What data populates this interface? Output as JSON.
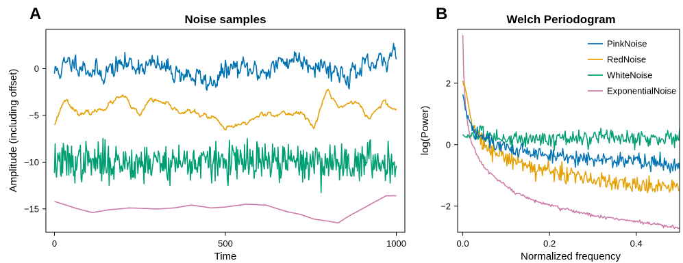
{
  "colors": {
    "pink": "#0072b2",
    "red": "#e69f00",
    "white": "#009e73",
    "exponential": "#cc79a7"
  },
  "chart_data": [
    {
      "panel": "A",
      "type": "line",
      "title": "Noise samples",
      "xlabel": "Time",
      "ylabel": "Amplitude (including offset)",
      "xlim": [
        -25,
        1025
      ],
      "ylim": [
        -17.5,
        4.2
      ],
      "xticks": [
        0,
        500,
        1000
      ],
      "xtick_labels": [
        "0",
        "500",
        "1000"
      ],
      "yticks": [
        0,
        -5,
        -10,
        -15
      ],
      "ytick_labels": [
        "0",
        "−5",
        "−10",
        "−15"
      ],
      "grid": false,
      "series": [
        {
          "color_key": "pink",
          "offset": 0,
          "kind": "pink",
          "scale": 0.9,
          "seed": 11,
          "anchors": [
            [
              0,
              -0.4
            ],
            [
              60,
              0.8
            ],
            [
              130,
              -0.6
            ],
            [
              200,
              0.5
            ],
            [
              300,
              0.3
            ],
            [
              420,
              -1.0
            ],
            [
              450,
              -1.6
            ],
            [
              520,
              0.1
            ],
            [
              600,
              -0.4
            ],
            [
              650,
              0.3
            ],
            [
              700,
              1.2
            ],
            [
              780,
              0.4
            ],
            [
              850,
              -0.6
            ],
            [
              930,
              0.2
            ],
            [
              970,
              0.6
            ],
            [
              1000,
              2.6
            ]
          ]
        },
        {
          "color_key": "red",
          "offset": -5,
          "kind": "red",
          "scale": 0.35,
          "seed": 23,
          "anchors": [
            [
              0,
              -5.9
            ],
            [
              30,
              -3.2
            ],
            [
              80,
              -5.0
            ],
            [
              120,
              -4.6
            ],
            [
              200,
              -3.0
            ],
            [
              250,
              -5.2
            ],
            [
              280,
              -3.2
            ],
            [
              350,
              -4.4
            ],
            [
              420,
              -4.8
            ],
            [
              470,
              -5.4
            ],
            [
              500,
              -6.6
            ],
            [
              560,
              -5.8
            ],
            [
              620,
              -4.6
            ],
            [
              680,
              -5.0
            ],
            [
              720,
              -4.5
            ],
            [
              760,
              -6.4
            ],
            [
              780,
              -4.0
            ],
            [
              800,
              -2.3
            ],
            [
              830,
              -4.2
            ],
            [
              880,
              -3.4
            ],
            [
              920,
              -5.4
            ],
            [
              960,
              -3.6
            ],
            [
              1000,
              -4.4
            ]
          ]
        },
        {
          "color_key": "white",
          "offset": -10,
          "kind": "white",
          "scale": 1.0,
          "seed": 37,
          "anchors": [
            [
              0,
              -10
            ],
            [
              1000,
              -10
            ]
          ]
        },
        {
          "color_key": "exponential",
          "offset": -15,
          "kind": "smooth",
          "scale": 0.06,
          "seed": 51,
          "anchors": [
            [
              0,
              -14.2
            ],
            [
              60,
              -14.9
            ],
            [
              110,
              -15.4
            ],
            [
              160,
              -15.1
            ],
            [
              220,
              -14.9
            ],
            [
              300,
              -15.0
            ],
            [
              350,
              -14.9
            ],
            [
              400,
              -14.6
            ],
            [
              460,
              -14.9
            ],
            [
              500,
              -14.8
            ],
            [
              560,
              -14.5
            ],
            [
              620,
              -14.6
            ],
            [
              680,
              -15.3
            ],
            [
              720,
              -15.6
            ],
            [
              760,
              -16.1
            ],
            [
              800,
              -16.3
            ],
            [
              830,
              -16.5
            ],
            [
              860,
              -15.8
            ],
            [
              900,
              -15.0
            ],
            [
              940,
              -14.2
            ],
            [
              970,
              -13.6
            ],
            [
              1000,
              -13.6
            ]
          ]
        }
      ]
    },
    {
      "panel": "B",
      "type": "line",
      "title": "Welch Periodogram",
      "xlabel": "Normalized frequency",
      "ylabel": "log(Power)",
      "xlim": [
        -0.012,
        0.5
      ],
      "ylim": [
        -2.85,
        3.75
      ],
      "xticks": [
        0.0,
        0.2,
        0.4
      ],
      "xtick_labels": [
        "0.0",
        "0.2",
        "0.4"
      ],
      "yticks": [
        2,
        0,
        -2
      ],
      "ytick_labels": [
        "2",
        "0",
        "−2"
      ],
      "grid": false,
      "legend_position": "top-right",
      "series": [
        {
          "name": "PinkNoise",
          "color_key": "pink",
          "noise": 0.14,
          "seed": 61,
          "anchors": [
            [
              0.0,
              1.6
            ],
            [
              0.01,
              0.9
            ],
            [
              0.03,
              0.4
            ],
            [
              0.06,
              0.1
            ],
            [
              0.1,
              -0.1
            ],
            [
              0.15,
              -0.25
            ],
            [
              0.2,
              -0.35
            ],
            [
              0.3,
              -0.45
            ],
            [
              0.4,
              -0.55
            ],
            [
              0.5,
              -0.62
            ]
          ]
        },
        {
          "name": "RedNoise",
          "color_key": "red",
          "noise": 0.15,
          "seed": 73,
          "anchors": [
            [
              0.0,
              2.0
            ],
            [
              0.005,
              1.9
            ],
            [
              0.02,
              0.8
            ],
            [
              0.04,
              0.2
            ],
            [
              0.07,
              -0.2
            ],
            [
              0.1,
              -0.4
            ],
            [
              0.15,
              -0.7
            ],
            [
              0.2,
              -0.85
            ],
            [
              0.25,
              -1.0
            ],
            [
              0.3,
              -1.15
            ],
            [
              0.4,
              -1.3
            ],
            [
              0.5,
              -1.4
            ]
          ]
        },
        {
          "name": "WhiteNoise",
          "color_key": "white",
          "noise": 0.14,
          "seed": 83,
          "anchors": [
            [
              0.0,
              0.3
            ],
            [
              0.1,
              0.2
            ],
            [
              0.3,
              0.2
            ],
            [
              0.5,
              0.22
            ]
          ]
        },
        {
          "name": "ExponentialNoise",
          "color_key": "exponential",
          "noise": 0.03,
          "seed": 97,
          "anchors": [
            [
              0.0,
              3.55
            ],
            [
              0.002,
              2.3
            ],
            [
              0.006,
              1.3
            ],
            [
              0.012,
              0.6
            ],
            [
              0.02,
              0.05
            ],
            [
              0.03,
              -0.3
            ],
            [
              0.05,
              -0.75
            ],
            [
              0.08,
              -1.15
            ],
            [
              0.12,
              -1.55
            ],
            [
              0.17,
              -1.85
            ],
            [
              0.22,
              -2.05
            ],
            [
              0.3,
              -2.3
            ],
            [
              0.4,
              -2.5
            ],
            [
              0.5,
              -2.72
            ]
          ]
        }
      ]
    }
  ]
}
